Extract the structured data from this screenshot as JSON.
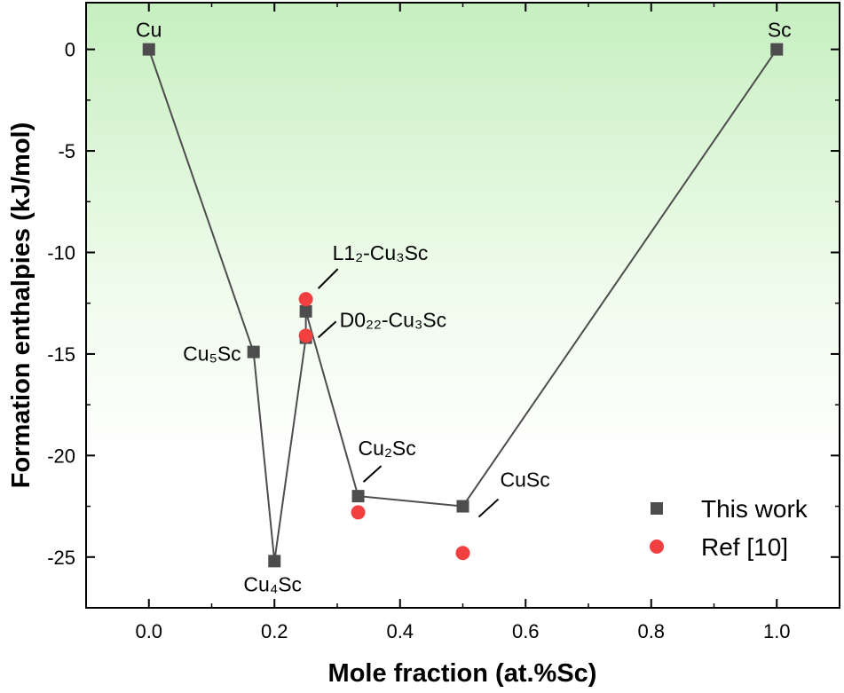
{
  "chart_data": {
    "type": "scatter",
    "title": "",
    "xlabel": "Mole fraction  (at.%Sc)",
    "ylabel": "Formation enthalpies (kJ/mol)",
    "xlim": [
      -0.1,
      1.1
    ],
    "ylim": [
      -27.5,
      2.3
    ],
    "xticks": [
      0.0,
      0.2,
      0.4,
      0.6,
      0.8,
      1.0
    ],
    "xtick_labels": [
      "0.0",
      "0.2",
      "0.4",
      "0.6",
      "0.8",
      "1.0"
    ],
    "yticks": [
      0,
      -5,
      -10,
      -15,
      -20,
      -25
    ],
    "ytick_labels": [
      "0",
      "-5",
      "-10",
      "-15",
      "-20",
      "-25"
    ],
    "grid": false,
    "legend_position": "bottom-right",
    "background": "light green gradient at top fading to white",
    "series": [
      {
        "name": "This work",
        "marker": "square",
        "color": "#4d4d4d",
        "line": true,
        "x": [
          0.0,
          0.1667,
          0.2,
          0.25,
          0.25,
          0.3333,
          0.5,
          1.0
        ],
        "y": [
          0.0,
          -14.9,
          -25.2,
          -14.2,
          -12.9,
          -22.0,
          -22.5,
          0.0
        ],
        "line_order": [
          0,
          1,
          2,
          3,
          4,
          5,
          6,
          7
        ]
      },
      {
        "name": "Ref [10]",
        "marker": "circle",
        "color": "#f24040",
        "line": false,
        "x": [
          0.25,
          0.25,
          0.3333,
          0.5
        ],
        "y": [
          -12.3,
          -14.1,
          -22.8,
          -24.8
        ]
      }
    ],
    "annotations": [
      {
        "text": "Cu",
        "x": 0.0,
        "y": 0.0
      },
      {
        "text": "Sc",
        "x": 1.0,
        "y": 0.0
      },
      {
        "text": "Cu₅Sc",
        "x": 0.1667,
        "y": -14.9
      },
      {
        "text": "Cu₄Sc",
        "x": 0.2,
        "y": -25.2
      },
      {
        "text": "L1₂-Cu₃Sc",
        "x": 0.25,
        "y": -12.3
      },
      {
        "text": "D0₂₂-Cu₃Sc",
        "x": 0.25,
        "y": -14.1
      },
      {
        "text": "Cu₂Sc",
        "x": 0.3333,
        "y": -22.0
      },
      {
        "text": "CuSc",
        "x": 0.5,
        "y": -22.5
      }
    ]
  }
}
